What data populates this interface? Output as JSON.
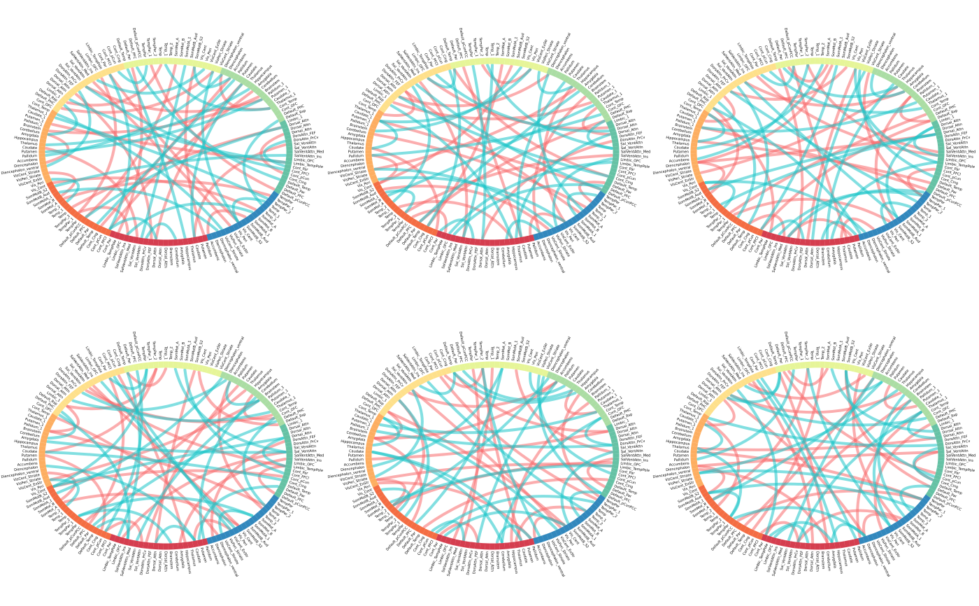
{
  "figure": {
    "panel_count": 6,
    "ring_colors": [
      "#d53e4f",
      "#f46d43",
      "#fdae61",
      "#fee08b",
      "#e6f598",
      "#abdda4",
      "#66c2a5",
      "#3288bd"
    ],
    "positive_link_color": "#f8696b",
    "negative_link_color": "#1cc5c9"
  },
  "labels": [
    "Dorsal_Attn",
    "Dorsal_Attn",
    "Dorsal_Attn",
    "DorsAttn_FEF",
    "DorsAttn_PrCv",
    "Sal_VentAttn",
    "Sal_VentAttn",
    "SalVentAttn_Med",
    "SalVentAttn_Ins",
    "Limbic_OFC",
    "Limbic_TempPole",
    "Cont_Par",
    "Cont_PFCl",
    "Cont_pCun",
    "Cont_Cing",
    "Default_Temp",
    "Default_Par",
    "Default_PFC",
    "Default_pCunPCC",
    "TempPar",
    "TempPar_1",
    "TempPar_2",
    "Temp",
    "Temp_1",
    "Temp_2",
    "SomMot_A",
    "SomMot_B",
    "SomMotA_1",
    "SomMotB_Aud",
    "SomMotB_S2",
    "Vis_Cent",
    "Vis_Peri",
    "VisCent_ExStr",
    "VisPeri_Striate",
    "VisCent_Striate",
    "Diencephalon_ventral",
    "Diencephalon",
    "Accumbens",
    "Pallidum",
    "Putamen",
    "Caudate",
    "Thalamus",
    "Hippocampus",
    "Amygdala",
    "Cerebellum",
    "Brainstem",
    "Pallidum_1",
    "Putamen_1",
    "Caudate_1",
    "Thalamus_1",
    "Cont_Temp",
    "Cont_OFC",
    "Default_PHC",
    "Default_Rsp",
    "Limbic_1"
  ],
  "panels": [
    {
      "positive_links": [
        [
          3,
          57
        ],
        [
          10,
          71
        ],
        [
          14,
          92
        ],
        [
          22,
          110
        ],
        [
          30,
          135
        ],
        [
          6,
          40
        ],
        [
          47,
          120
        ],
        [
          52,
          88
        ],
        [
          60,
          101
        ],
        [
          66,
          140
        ],
        [
          75,
          128
        ],
        [
          80,
          18
        ],
        [
          95,
          2
        ],
        [
          100,
          45
        ],
        [
          115,
          150
        ],
        [
          130,
          25
        ],
        [
          142,
          62
        ],
        [
          148,
          84
        ],
        [
          8,
          20
        ],
        [
          26,
          33
        ],
        [
          36,
          44
        ],
        [
          54,
          77
        ],
        [
          90,
          104
        ],
        [
          112,
          123
        ],
        [
          138,
          147
        ],
        [
          20,
          64
        ],
        [
          12,
          98
        ]
      ],
      "negative_links": [
        [
          5,
          82
        ],
        [
          12,
          66
        ],
        [
          18,
          110
        ],
        [
          27,
          145
        ],
        [
          35,
          58
        ],
        [
          41,
          97
        ],
        [
          49,
          131
        ],
        [
          55,
          120
        ],
        [
          63,
          86
        ],
        [
          70,
          152
        ],
        [
          78,
          104
        ],
        [
          88,
          140
        ],
        [
          93,
          15
        ],
        [
          101,
          39
        ],
        [
          108,
          133
        ],
        [
          118,
          29
        ],
        [
          125,
          72
        ],
        [
          136,
          8
        ],
        [
          144,
          50
        ],
        [
          150,
          95
        ],
        [
          2,
          12
        ],
        [
          24,
          31
        ],
        [
          44,
          53
        ],
        [
          68,
          74
        ],
        [
          84,
          92
        ],
        [
          114,
          121
        ],
        [
          132,
          140
        ],
        [
          154,
          4
        ],
        [
          60,
          122
        ],
        [
          38,
          90
        ]
      ]
    },
    {
      "positive_links": [
        [
          6,
          62
        ],
        [
          14,
          80
        ],
        [
          20,
          118
        ],
        [
          28,
          144
        ],
        [
          34,
          97
        ],
        [
          40,
          12
        ],
        [
          48,
          128
        ],
        [
          56,
          90
        ],
        [
          64,
          110
        ],
        [
          72,
          150
        ],
        [
          82,
          30
        ],
        [
          96,
          140
        ],
        [
          102,
          54
        ],
        [
          114,
          2
        ],
        [
          124,
          70
        ],
        [
          134,
          44
        ],
        [
          146,
          100
        ],
        [
          152,
          22
        ],
        [
          10,
          18
        ],
        [
          30,
          38
        ],
        [
          50,
          58
        ],
        [
          76,
          86
        ],
        [
          104,
          112
        ],
        [
          126,
          132
        ],
        [
          140,
          148
        ],
        [
          16,
          108
        ],
        [
          58,
          136
        ]
      ],
      "negative_links": [
        [
          2,
          74
        ],
        [
          9,
          120
        ],
        [
          16,
          98
        ],
        [
          24,
          60
        ],
        [
          31,
          140
        ],
        [
          38,
          106
        ],
        [
          45,
          84
        ],
        [
          53,
          152
        ],
        [
          61,
          128
        ],
        [
          69,
          14
        ],
        [
          77,
          116
        ],
        [
          86,
          48
        ],
        [
          94,
          150
        ],
        [
          103,
          26
        ],
        [
          111,
          66
        ],
        [
          119,
          142
        ],
        [
          127,
          8
        ],
        [
          135,
          90
        ],
        [
          143,
          34
        ],
        [
          151,
          112
        ],
        [
          4,
          11
        ],
        [
          20,
          27
        ],
        [
          40,
          48
        ],
        [
          64,
          70
        ],
        [
          88,
          96
        ],
        [
          108,
          116
        ],
        [
          130,
          137
        ],
        [
          146,
          153
        ],
        [
          56,
          124
        ],
        [
          78,
          6
        ]
      ]
    },
    {
      "positive_links": [
        [
          4,
          70
        ],
        [
          12,
          108
        ],
        [
          19,
          140
        ],
        [
          27,
          52
        ],
        [
          33,
          96
        ],
        [
          42,
          126
        ],
        [
          50,
          10
        ],
        [
          58,
          84
        ],
        [
          65,
          118
        ],
        [
          73,
          150
        ],
        [
          81,
          36
        ],
        [
          89,
          130
        ],
        [
          98,
          62
        ],
        [
          106,
          20
        ],
        [
          117,
          76
        ],
        [
          128,
          46
        ],
        [
          139,
          100
        ],
        [
          149,
          6
        ],
        [
          7,
          15
        ],
        [
          28,
          36
        ],
        [
          48,
          56
        ],
        [
          72,
          80
        ],
        [
          100,
          108
        ],
        [
          122,
          130
        ],
        [
          144,
          151
        ],
        [
          36,
          112
        ],
        [
          86,
          2
        ]
      ],
      "negative_links": [
        [
          1,
          88
        ],
        [
          8,
          130
        ],
        [
          15,
          60
        ],
        [
          23,
          112
        ],
        [
          30,
          146
        ],
        [
          37,
          76
        ],
        [
          46,
          102
        ],
        [
          54,
          18
        ],
        [
          62,
          138
        ],
        [
          71,
          96
        ],
        [
          79,
          40
        ],
        [
          87,
          124
        ],
        [
          95,
          154
        ],
        [
          104,
          68
        ],
        [
          112,
          28
        ],
        [
          120,
          86
        ],
        [
          129,
          6
        ],
        [
          138,
          110
        ],
        [
          147,
          52
        ],
        [
          153,
          120
        ],
        [
          3,
          10
        ],
        [
          22,
          30
        ],
        [
          42,
          50
        ],
        [
          66,
          73
        ],
        [
          90,
          98
        ],
        [
          110,
          118
        ],
        [
          134,
          141
        ],
        [
          148,
          155
        ],
        [
          58,
          132
        ],
        [
          82,
          12
        ]
      ]
    },
    {
      "positive_links": [
        [
          2,
          84
        ],
        [
          9,
          116
        ],
        [
          17,
          66
        ],
        [
          25,
          140
        ],
        [
          32,
          100
        ],
        [
          39,
          14
        ],
        [
          46,
          132
        ],
        [
          54,
          76
        ],
        [
          61,
          120
        ],
        [
          68,
          152
        ],
        [
          76,
          40
        ],
        [
          85,
          108
        ],
        [
          94,
          4
        ],
        [
          105,
          60
        ],
        [
          113,
          146
        ],
        [
          123,
          30
        ],
        [
          133,
          92
        ],
        [
          145,
          50
        ],
        [
          153,
          118
        ],
        [
          5,
          13
        ],
        [
          26,
          34
        ],
        [
          46,
          54
        ],
        [
          70,
          78
        ],
        [
          98,
          106
        ],
        [
          120,
          128
        ],
        [
          142,
          150
        ],
        [
          18,
          96
        ],
        [
          62,
          140
        ]
      ],
      "negative_links": [
        [
          6,
          100
        ],
        [
          13,
          72
        ],
        [
          20,
          136
        ],
        [
          28,
          90
        ],
        [
          36,
          150
        ],
        [
          43,
          116
        ],
        [
          51,
          8
        ],
        [
          59,
          104
        ],
        [
          67,
          142
        ],
        [
          74,
          30
        ],
        [
          82,
          122
        ],
        [
          91,
          56
        ],
        [
          99,
          148
        ],
        [
          107,
          16
        ],
        [
          116,
          80
        ],
        [
          124,
          40
        ],
        [
          132,
          106
        ],
        [
          141,
          64
        ],
        [
          149,
          126
        ],
        [
          155,
          20
        ],
        [
          8,
          15
        ],
        [
          24,
          32
        ],
        [
          44,
          52
        ],
        [
          66,
          74
        ],
        [
          92,
          100
        ],
        [
          112,
          120
        ],
        [
          136,
          144
        ],
        [
          150,
          2
        ],
        [
          30,
          112
        ],
        [
          70,
          10
        ]
      ]
    },
    {
      "positive_links": [
        [
          8,
          78
        ],
        [
          15,
          124
        ],
        [
          23,
          56
        ],
        [
          31,
          148
        ],
        [
          38,
          110
        ],
        [
          44,
          18
        ],
        [
          52,
          140
        ],
        [
          59,
          92
        ],
        [
          67,
          130
        ],
        [
          74,
          6
        ],
        [
          83,
          116
        ],
        [
          92,
          44
        ],
        [
          101,
          152
        ],
        [
          110,
          70
        ],
        [
          119,
          24
        ],
        [
          129,
          98
        ],
        [
          141,
          60
        ],
        [
          151,
          134
        ],
        [
          3,
          11
        ],
        [
          24,
          32
        ],
        [
          44,
          52
        ],
        [
          68,
          76
        ],
        [
          96,
          104
        ],
        [
          118,
          126
        ],
        [
          140,
          147
        ],
        [
          32,
          120
        ],
        [
          76,
          150
        ]
      ],
      "negative_links": [
        [
          3,
          92
        ],
        [
          10,
          140
        ],
        [
          17,
          80
        ],
        [
          25,
          120
        ],
        [
          33,
          60
        ],
        [
          40,
          150
        ],
        [
          48,
          104
        ],
        [
          56,
          20
        ],
        [
          64,
          134
        ],
        [
          72,
          96
        ],
        [
          80,
          36
        ],
        [
          89,
          128
        ],
        [
          97,
          70
        ],
        [
          106,
          154
        ],
        [
          114,
          46
        ],
        [
          122,
          88
        ],
        [
          131,
          12
        ],
        [
          139,
          116
        ],
        [
          146,
          76
        ],
        [
          154,
          40
        ],
        [
          6,
          13
        ],
        [
          22,
          29
        ],
        [
          42,
          50
        ],
        [
          62,
          70
        ],
        [
          86,
          94
        ],
        [
          106,
          114
        ],
        [
          128,
          136
        ],
        [
          148,
          155
        ],
        [
          50,
          142
        ],
        [
          90,
          24
        ]
      ]
    },
    {
      "positive_links": [
        [
          1,
          64
        ],
        [
          11,
          100
        ],
        [
          18,
          130
        ],
        [
          26,
          76
        ],
        [
          35,
          154
        ],
        [
          41,
          112
        ],
        [
          49,
          24
        ],
        [
          57,
          146
        ],
        [
          63,
          88
        ],
        [
          71,
          122
        ],
        [
          79,
          14
        ],
        [
          87,
          138
        ],
        [
          97,
          58
        ],
        [
          108,
          142
        ],
        [
          116,
          36
        ],
        [
          126,
          84
        ],
        [
          137,
          4
        ],
        [
          147,
          104
        ],
        [
          154,
          70
        ],
        [
          4,
          12
        ],
        [
          28,
          36
        ],
        [
          48,
          56
        ],
        [
          72,
          80
        ],
        [
          94,
          102
        ],
        [
          116,
          124
        ],
        [
          138,
          146
        ],
        [
          40,
          130
        ],
        [
          90,
          16
        ]
      ],
      "negative_links": [
        [
          4,
          104
        ],
        [
          11,
          60
        ],
        [
          19,
          146
        ],
        [
          26,
          92
        ],
        [
          34,
          130
        ],
        [
          41,
          20
        ],
        [
          50,
          114
        ],
        [
          57,
          70
        ],
        [
          65,
          152
        ],
        [
          73,
          38
        ],
        [
          81,
          110
        ],
        [
          90,
          6
        ],
        [
          98,
          136
        ],
        [
          106,
          58
        ],
        [
          115,
          124
        ],
        [
          123,
          84
        ],
        [
          133,
          28
        ],
        [
          140,
          100
        ],
        [
          148,
          66
        ],
        [
          153,
          10
        ],
        [
          2,
          9
        ],
        [
          20,
          28
        ],
        [
          40,
          48
        ],
        [
          62,
          70
        ],
        [
          84,
          92
        ],
        [
          104,
          112
        ],
        [
          126,
          134
        ],
        [
          146,
          153
        ],
        [
          34,
          96
        ],
        [
          76,
          140
        ]
      ]
    }
  ]
}
